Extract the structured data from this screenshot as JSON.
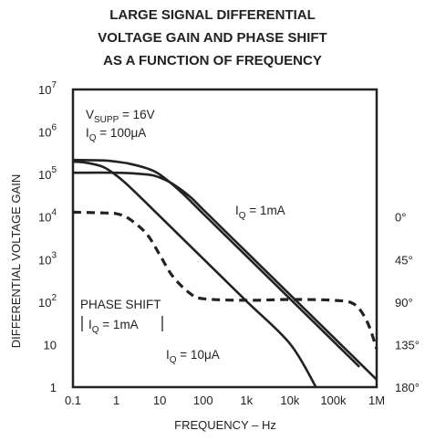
{
  "chart_data": {
    "type": "line",
    "title_lines": [
      "LARGE SIGNAL DIFFERENTIAL",
      "VOLTAGE GAIN AND PHASE SHIFT",
      "AS A FUNCTION OF FREQUENCY"
    ],
    "xlabel": "FREQUENCY – Hz",
    "ylabel": "DIFFERENTIAL VOLTAGE GAIN",
    "x_scale": "log",
    "y_scale": "log",
    "xlim": [
      0.1,
      1000000
    ],
    "ylim": [
      1,
      10000000
    ],
    "x_tick_values": [
      0.1,
      1,
      10,
      100,
      1000,
      10000,
      100000,
      1000000
    ],
    "x_tick_labels": [
      "0.1",
      "1",
      "10",
      "100",
      "1k",
      "10k",
      "100k",
      "1M"
    ],
    "y_tick_values": [
      1,
      10,
      100,
      1000,
      10000,
      100000,
      1000000,
      10000000
    ],
    "y_tick_labels": [
      {
        "base": "1",
        "exp": ""
      },
      {
        "base": "10",
        "exp": ""
      },
      {
        "base": "10",
        "exp": "2"
      },
      {
        "base": "10",
        "exp": "3"
      },
      {
        "base": "10",
        "exp": "4"
      },
      {
        "base": "10",
        "exp": "5"
      },
      {
        "base": "10",
        "exp": "6"
      },
      {
        "base": "10",
        "exp": "7"
      }
    ],
    "y2_scale": "linear",
    "y2_gain_equivalent": [
      {
        "label": "0°",
        "gain": 10000
      },
      {
        "label": "45°",
        "gain": 1000
      },
      {
        "label": "90°",
        "gain": 100
      },
      {
        "label": "135°",
        "gain": 10
      },
      {
        "label": "180°",
        "gain": 1
      }
    ],
    "grid": false,
    "series": [
      {
        "name": "IQ = 10μA",
        "style": "solid",
        "x": [
          0.1,
          0.2,
          0.5,
          1,
          2,
          5,
          10,
          100,
          1000,
          10000,
          40000
        ],
        "y": [
          200000,
          190000,
          150000,
          95000,
          52000,
          21000,
          10500,
          1050,
          105,
          10.5,
          1
        ]
      },
      {
        "name": "IQ = 100μA",
        "style": "solid",
        "x": [
          0.1,
          0.5,
          1,
          2,
          5,
          10,
          30,
          100,
          1000,
          10000,
          100000,
          400000
        ],
        "y": [
          220000,
          215000,
          200000,
          180000,
          140000,
          100000,
          40000,
          12000,
          1200,
          120,
          12,
          3
        ]
      },
      {
        "name": "IQ = 1mA",
        "style": "solid",
        "x": [
          0.1,
          1,
          5,
          10,
          20,
          50,
          100,
          1000,
          10000,
          100000,
          1000000
        ],
        "y": [
          110000,
          110000,
          100000,
          85000,
          60000,
          30000,
          15000,
          1500,
          150,
          15,
          1.5
        ]
      },
      {
        "name": "PHASE SHIFT (IQ = 1mA)",
        "style": "dashed",
        "x": [
          0.1,
          0.5,
          1,
          2,
          5,
          10,
          20,
          50,
          100,
          1000,
          10000,
          100000,
          300000,
          600000,
          1000000
        ],
        "y": [
          13000,
          12500,
          12000,
          9000,
          4000,
          1300,
          400,
          160,
          120,
          110,
          115,
          110,
          90,
          35,
          8
        ]
      }
    ],
    "annotations": {
      "vsupp": {
        "main": "V",
        "sub": "SUPP",
        "rest": " = 16V"
      },
      "iq_100uA": {
        "main": "I",
        "sub": "Q",
        "rest": " = 100μA"
      },
      "iq_1mA": {
        "main": "I",
        "sub": "Q",
        "rest": " = 1mA"
      },
      "iq_10uA": {
        "main": "I",
        "sub": "Q",
        "rest": " = 10μA"
      },
      "phase_shift": "PHASE SHIFT",
      "phase_iq": {
        "main": "I",
        "sub": "Q",
        "rest": " = 1mA"
      }
    },
    "colors": {
      "ink": "#222222"
    }
  }
}
